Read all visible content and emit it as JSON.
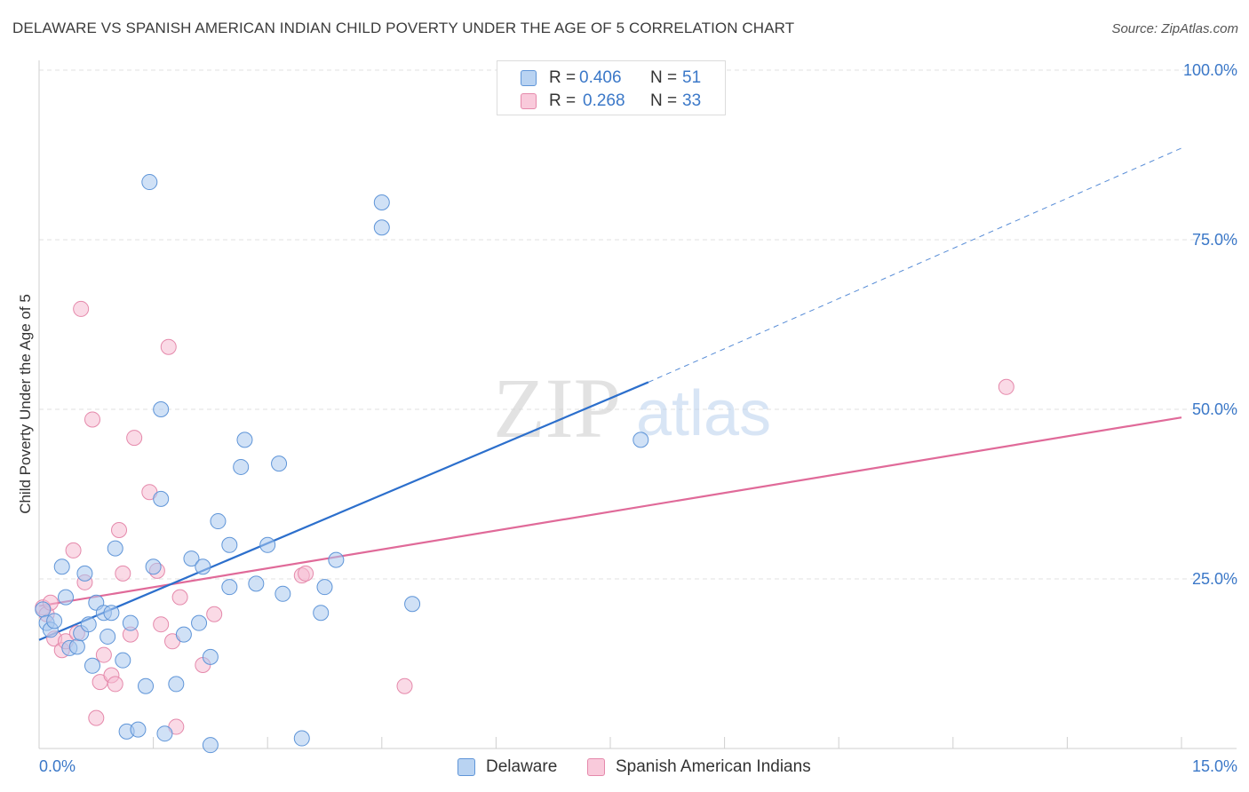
{
  "header": {
    "title": "DELAWARE VS SPANISH AMERICAN INDIAN CHILD POVERTY UNDER THE AGE OF 5 CORRELATION CHART",
    "source": "Source: ZipAtlas.com"
  },
  "watermark": {
    "zip": "ZIP",
    "atlas": "atlas"
  },
  "legend_top": {
    "rows": [
      {
        "r_label": "R =",
        "r_value": "0.406",
        "n_label": "N =",
        "n_value": "51"
      },
      {
        "r_label": "R =",
        "r_value": "0.268",
        "n_label": "N =",
        "n_value": "33"
      }
    ]
  },
  "colors": {
    "delaware_fill": "#a9c8ee",
    "delaware_stroke": "#5f95d8",
    "delaware_line": "#2c6fcc",
    "spanish_fill": "#f6bcd1",
    "spanish_stroke": "#e589ab",
    "spanish_line": "#e06a99",
    "tick_text": "#3b78c8",
    "grid": "#e2e2e2"
  },
  "chart_data": {
    "type": "scatter",
    "ylabel": "Child Poverty Under the Age of 5",
    "xlim": [
      0,
      15
    ],
    "ylim": [
      0,
      100
    ],
    "x_tick_labels": [
      "0.0%",
      "15.0%"
    ],
    "y_ticks": [
      25,
      50,
      75,
      100
    ],
    "y_tick_labels": [
      "25.0%",
      "50.0%",
      "75.0%",
      "100.0%"
    ],
    "grid": true,
    "legend_position": "bottom",
    "series": [
      {
        "name": "Delaware",
        "color": "#5f95d8",
        "points": [
          [
            0.05,
            20.5
          ],
          [
            0.1,
            18.5
          ],
          [
            0.15,
            17.5
          ],
          [
            0.2,
            18.8
          ],
          [
            0.3,
            26.8
          ],
          [
            0.35,
            22.3
          ],
          [
            0.4,
            14.8
          ],
          [
            0.5,
            15.0
          ],
          [
            0.55,
            17.0
          ],
          [
            0.6,
            25.8
          ],
          [
            0.65,
            18.3
          ],
          [
            0.7,
            12.2
          ],
          [
            0.75,
            21.5
          ],
          [
            0.85,
            20.0
          ],
          [
            0.9,
            16.5
          ],
          [
            0.95,
            20.0
          ],
          [
            1.0,
            29.5
          ],
          [
            1.1,
            13.0
          ],
          [
            1.15,
            2.5
          ],
          [
            1.2,
            18.5
          ],
          [
            1.3,
            2.8
          ],
          [
            1.4,
            9.2
          ],
          [
            1.45,
            83.5
          ],
          [
            1.5,
            26.8
          ],
          [
            1.6,
            50.0
          ],
          [
            1.6,
            36.8
          ],
          [
            1.65,
            2.2
          ],
          [
            1.8,
            9.5
          ],
          [
            1.9,
            16.8
          ],
          [
            2.0,
            28.0
          ],
          [
            2.1,
            18.5
          ],
          [
            2.15,
            26.8
          ],
          [
            2.25,
            0.5
          ],
          [
            2.25,
            13.5
          ],
          [
            2.35,
            33.5
          ],
          [
            2.5,
            23.8
          ],
          [
            2.5,
            30.0
          ],
          [
            2.65,
            41.5
          ],
          [
            2.7,
            45.5
          ],
          [
            2.85,
            24.3
          ],
          [
            3.0,
            30.0
          ],
          [
            3.15,
            42.0
          ],
          [
            3.2,
            22.8
          ],
          [
            3.45,
            1.5
          ],
          [
            3.7,
            20.0
          ],
          [
            3.75,
            23.8
          ],
          [
            3.9,
            27.8
          ],
          [
            4.5,
            80.5
          ],
          [
            4.5,
            76.8
          ],
          [
            4.9,
            21.3
          ],
          [
            7.9,
            45.5
          ]
        ],
        "trend": {
          "x": [
            0.0,
            8.0
          ],
          "y": [
            16.0,
            54.0
          ],
          "dashed_extension": {
            "x": [
              8.0,
              15.0
            ],
            "y": [
              54.0,
              88.5
            ]
          }
        }
      },
      {
        "name": "Spanish American Indians",
        "color": "#e589ab",
        "points": [
          [
            0.05,
            20.8
          ],
          [
            0.1,
            19.8
          ],
          [
            0.15,
            21.5
          ],
          [
            0.2,
            16.2
          ],
          [
            0.3,
            14.5
          ],
          [
            0.35,
            15.8
          ],
          [
            0.45,
            29.2
          ],
          [
            0.5,
            17.0
          ],
          [
            0.55,
            64.8
          ],
          [
            0.6,
            24.5
          ],
          [
            0.7,
            48.5
          ],
          [
            0.75,
            4.5
          ],
          [
            0.8,
            9.8
          ],
          [
            0.85,
            13.8
          ],
          [
            0.95,
            10.8
          ],
          [
            1.0,
            9.5
          ],
          [
            1.05,
            32.2
          ],
          [
            1.1,
            25.8
          ],
          [
            1.2,
            16.8
          ],
          [
            1.25,
            45.8
          ],
          [
            1.45,
            37.8
          ],
          [
            1.55,
            26.2
          ],
          [
            1.6,
            18.3
          ],
          [
            1.7,
            59.2
          ],
          [
            1.75,
            15.8
          ],
          [
            1.8,
            3.2
          ],
          [
            1.85,
            22.3
          ],
          [
            2.15,
            12.3
          ],
          [
            2.3,
            19.8
          ],
          [
            3.45,
            25.5
          ],
          [
            3.5,
            25.8
          ],
          [
            4.8,
            9.2
          ],
          [
            12.7,
            53.3
          ]
        ],
        "trend": {
          "x": [
            0.0,
            15.0
          ],
          "y": [
            21.0,
            48.8
          ]
        }
      }
    ]
  }
}
